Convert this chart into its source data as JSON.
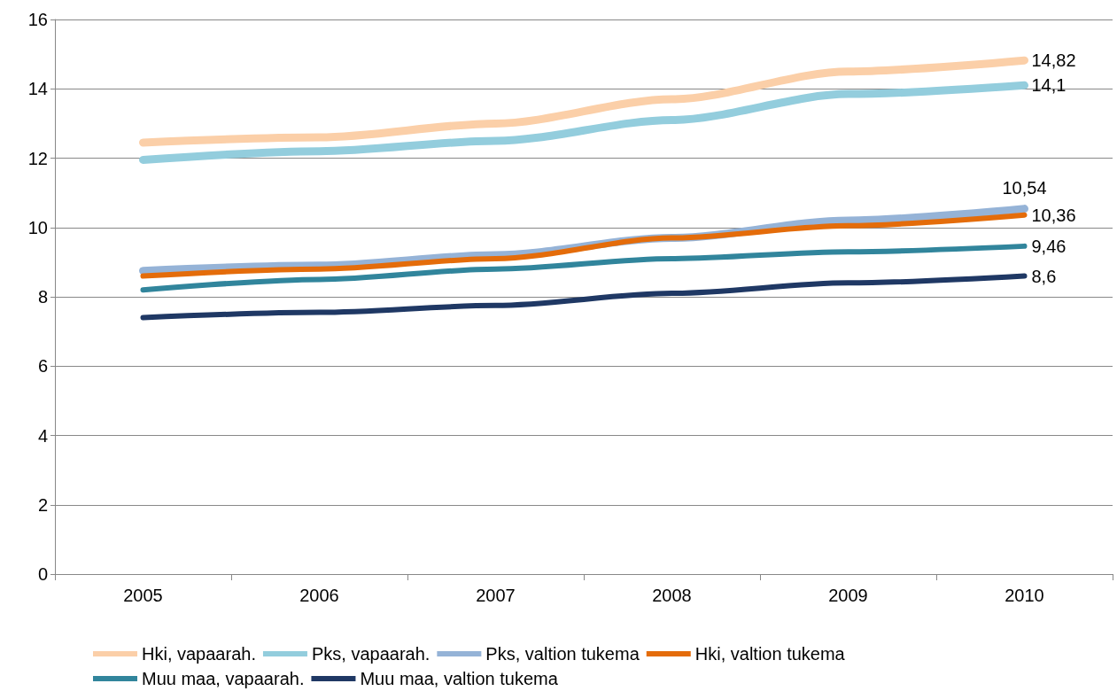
{
  "chart_data": {
    "type": "line",
    "categories": [
      "2005",
      "2006",
      "2007",
      "2008",
      "2009",
      "2010"
    ],
    "series": [
      {
        "name": "Hki, vapaarah.",
        "color": "#fbcfa8",
        "values": [
          12.45,
          12.6,
          13.0,
          13.7,
          14.5,
          14.82
        ],
        "value_labels": [
          null,
          null,
          null,
          null,
          null,
          "14,82"
        ]
      },
      {
        "name": "Pks, vapaarah.",
        "color": "#93cddd",
        "values": [
          11.95,
          12.2,
          12.5,
          13.1,
          13.85,
          14.1
        ],
        "value_labels": [
          null,
          null,
          null,
          null,
          null,
          "14,1"
        ]
      },
      {
        "name": "Pks, valtion tukema",
        "color": "#95b3d7",
        "values": [
          8.75,
          8.9,
          9.2,
          9.7,
          10.2,
          10.54
        ],
        "value_labels": [
          null,
          null,
          null,
          null,
          null,
          "10,54"
        ]
      },
      {
        "name": "Hki, valtion tukema",
        "color": "#e46c0a",
        "values": [
          8.6,
          8.8,
          9.1,
          9.7,
          10.05,
          10.36
        ],
        "value_labels": [
          null,
          null,
          null,
          null,
          null,
          "10,36"
        ]
      },
      {
        "name": "Muu maa, vapaarah.",
        "color": "#31859c",
        "values": [
          8.2,
          8.5,
          8.8,
          9.1,
          9.3,
          9.46
        ],
        "value_labels": [
          null,
          null,
          null,
          null,
          null,
          "9,46"
        ]
      },
      {
        "name": "Muu maa, valtion tukema",
        "color": "#1f3864",
        "values": [
          7.4,
          7.55,
          7.75,
          8.1,
          8.4,
          8.6
        ],
        "value_labels": [
          null,
          null,
          null,
          null,
          null,
          "8,6"
        ]
      }
    ],
    "ylim": [
      0,
      16
    ],
    "yticks": [
      0,
      2,
      4,
      6,
      8,
      10,
      12,
      14,
      16
    ],
    "grid": "y",
    "legend": "bottom",
    "marker": "none",
    "line_style": "solid"
  }
}
